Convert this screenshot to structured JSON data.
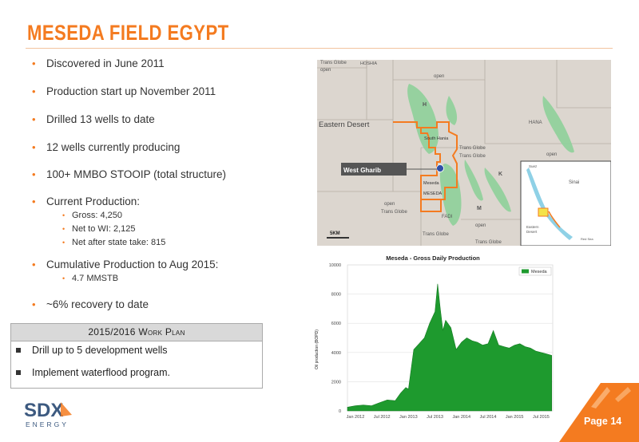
{
  "title": "MESEDA FIELD EGYPT",
  "bullets": [
    "Discovered in June 2011",
    "Production start up November 2011",
    "Drilled 13 wells to date",
    "12 wells currently producing",
    "100+ MMBO STOOIP (total structure)",
    "Current Production:",
    "Cumulative Production to Aug 2015:",
    "~6% recovery to date"
  ],
  "current_production_sub": [
    "Gross: 4,250",
    "Net to WI: 2,125",
    "Net after state take: 815"
  ],
  "cumulative_sub": [
    "4.7 MMSTB"
  ],
  "work_plan": {
    "title": "2015/2016 Work Plan",
    "items": [
      "Drill up to 5 development wells",
      "Implement waterflood program."
    ]
  },
  "map": {
    "labels": {
      "trans_globe_tl": "Trans Globe",
      "open_tl": "open",
      "hoshia": "HOSHIA",
      "open_top": "open",
      "h": "H",
      "eastern_desert": "Eastern Desert",
      "south_hania": "South Hania",
      "hana": "HANA",
      "trans_globe_1": "Trans Globe",
      "trans_globe_2": "Trans Globe",
      "open_r": "open",
      "west_gharib": "West Gharib",
      "k": "K",
      "meseda": "Meseda",
      "meseda_caps": "MESEDA",
      "m": "M",
      "fadi": "FADI",
      "open_bl": "open",
      "trans_globe_bl": "Trans Globe",
      "open_br": "open",
      "trans_globe_b1": "Trans Globe",
      "trans_globe_b2": "Trans Globe",
      "scale": "5KM",
      "suez": "Suez",
      "sinai": "Sinai",
      "eastern_desert_inset_1": "Eastern",
      "eastern_desert_inset_2": "Desert",
      "red_sea": "Red Sea"
    }
  },
  "chart_data": {
    "type": "area",
    "title": "Meseda - Gross Daily Production",
    "ylabel": "Oil production (BOPD)",
    "xlabel": "",
    "ylim": [
      0,
      10000
    ],
    "yticks": [
      "0",
      "2000",
      "4000",
      "6000",
      "8000",
      "10000"
    ],
    "xtick_labels": [
      "Jan 2012",
      "Jul 2012",
      "Jan 2013",
      "Jul 2013",
      "Jan 2014",
      "Jul 2014",
      "Jan 2015",
      "Jul 2015"
    ],
    "legend": "top-right",
    "grid": true,
    "series": [
      {
        "name": "Meseda",
        "color": "#1e9a2e",
        "x": [
          2011.85,
          2012.0,
          2012.15,
          2012.3,
          2012.45,
          2012.6,
          2012.75,
          2012.85,
          2012.95,
          2013.0,
          2013.1,
          2013.2,
          2013.3,
          2013.4,
          2013.5,
          2013.55,
          2013.6,
          2013.65,
          2013.7,
          2013.8,
          2013.9,
          2014.0,
          2014.1,
          2014.2,
          2014.3,
          2014.4,
          2014.5,
          2014.6,
          2014.7,
          2014.8,
          2014.9,
          2015.0,
          2015.1,
          2015.2,
          2015.3,
          2015.4,
          2015.5,
          2015.6,
          2015.7
        ],
        "values": [
          250,
          350,
          400,
          350,
          550,
          750,
          700,
          1200,
          1600,
          1500,
          4200,
          4600,
          5000,
          6000,
          6800,
          8700,
          7000,
          5500,
          6200,
          5700,
          4200,
          4700,
          5000,
          4800,
          4700,
          4500,
          4600,
          5500,
          4500,
          4400,
          4300,
          4500,
          4600,
          4400,
          4300,
          4100,
          4000,
          3900,
          3800
        ]
      }
    ]
  },
  "logo": {
    "brand": "SDX",
    "sub": "ENERGY"
  },
  "page": "Page 14",
  "colors": {
    "accent": "#f47b20",
    "field_green": "#8fd19a",
    "bar_green": "#1e9a2e"
  }
}
